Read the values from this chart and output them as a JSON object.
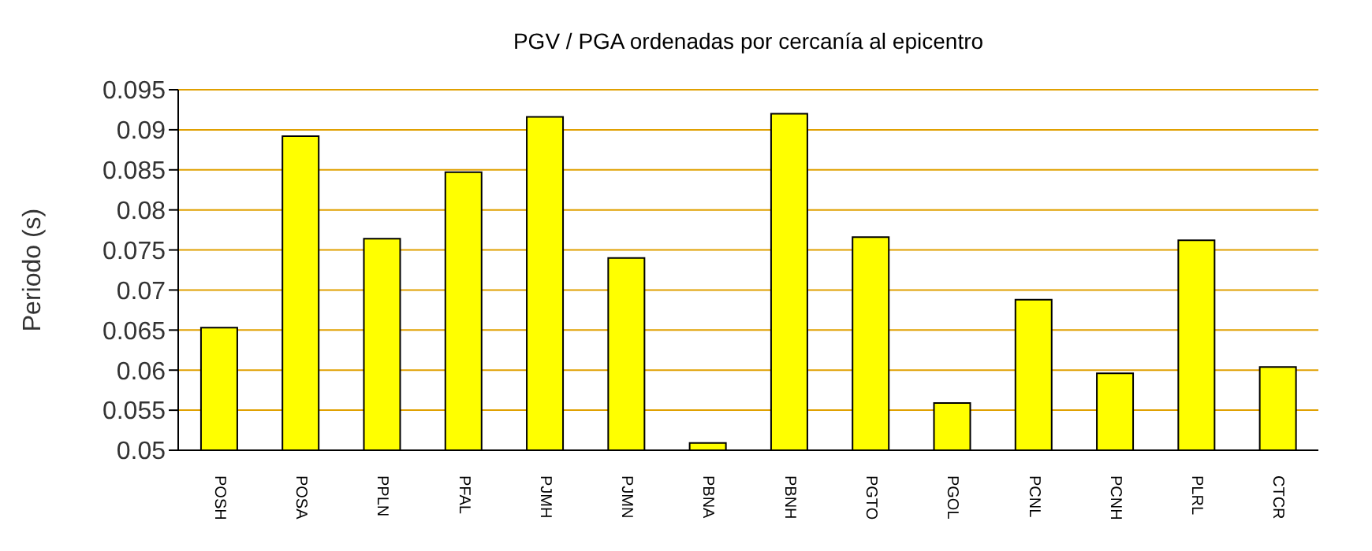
{
  "chart_data": {
    "type": "bar",
    "title": "PGV / PGA ordenadas por cercanía al epicentro",
    "ylabel": "Periodo (s)",
    "categories": [
      "POSH",
      "POSA",
      "PPLN",
      "PFAL",
      "PJMH",
      "PJMN",
      "PBNA",
      "PBNH",
      "PGTO",
      "PGOL",
      "PCNL",
      "PCNH",
      "PLRL",
      "CTCR"
    ],
    "values": [
      0.0653,
      0.0892,
      0.0764,
      0.0847,
      0.0916,
      0.074,
      0.0509,
      0.092,
      0.0766,
      0.0559,
      0.0688,
      0.0596,
      0.0762,
      0.0604
    ],
    "color": "#ffff00",
    "ylim": [
      0.05,
      0.095
    ],
    "yticks": [
      0.05,
      0.055,
      0.06,
      0.065,
      0.07,
      0.075,
      0.08,
      0.085,
      0.09,
      0.095
    ],
    "grid": "y",
    "legend": false
  }
}
